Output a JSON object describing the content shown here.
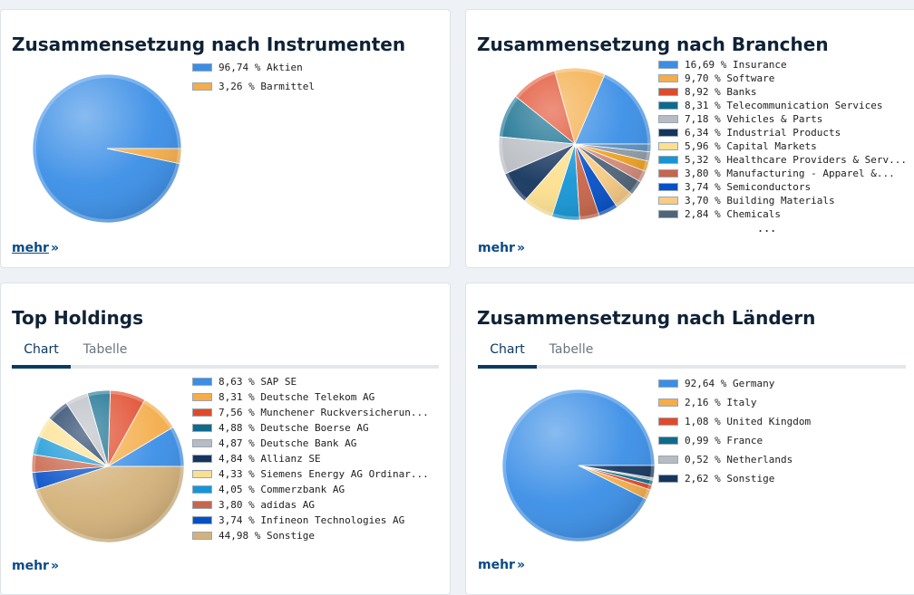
{
  "cards": {
    "instrumente": {
      "title": "Zusammensetzung nach Instrumenten",
      "more": "mehr",
      "chevron": "»",
      "chart_data": {
        "type": "pie",
        "slices": [
          {
            "label": "96,74 % Aktien",
            "value": 96.74,
            "color": "#3a8ee6"
          },
          {
            "label": "3,26 % Barmittel",
            "value": 3.26,
            "color": "#f4ad4a"
          }
        ]
      }
    },
    "branchen": {
      "title": "Zusammensetzung nach Branchen",
      "more": "mehr",
      "chevron": "»",
      "more_indicator": "...",
      "chart_data": {
        "type": "pie",
        "slices": [
          {
            "label": "16,69 % Insurance",
            "value": 16.69,
            "color": "#3a8ee6"
          },
          {
            "label": "9,70 % Software",
            "value": 9.7,
            "color": "#f4ad4a"
          },
          {
            "label": "8,92 % Banks",
            "value": 8.92,
            "color": "#e04a2a"
          },
          {
            "label": "8,31 % Telecommunication Services",
            "value": 8.31,
            "color": "#0f6b8c"
          },
          {
            "label": "7,18 % Vehicles & Parts",
            "value": 7.18,
            "color": "#b8bcc2"
          },
          {
            "label": "6,34 % Industrial Products",
            "value": 6.34,
            "color": "#16355e"
          },
          {
            "label": "5,96 % Capital Markets",
            "value": 5.96,
            "color": "#fde08f"
          },
          {
            "label": "5,32 % Healthcare Providers & Serv...",
            "value": 5.32,
            "color": "#1596d6"
          },
          {
            "label": "3,80 % Manufacturing - Apparel &...",
            "value": 3.8,
            "color": "#c8654a"
          },
          {
            "label": "3,74 % Semiconductors",
            "value": 3.74,
            "color": "#0550c8"
          },
          {
            "label": "3,70 % Building Materials",
            "value": 3.7,
            "color": "#f8cc85"
          },
          {
            "label": "2,84 % Chemicals",
            "value": 2.84,
            "color": "#4f6478"
          }
        ],
        "rest_slices": [
          {
            "value": 2.2,
            "color": "#d18a7a"
          },
          {
            "value": 2.0,
            "color": "#f0a220"
          },
          {
            "value": 1.8,
            "color": "#8f9aa6"
          },
          {
            "value": 1.5,
            "color": "#5b8fbf"
          }
        ]
      }
    },
    "holdings": {
      "title": "Top Holdings",
      "tabs": [
        "Chart",
        "Tabelle"
      ],
      "more": "mehr",
      "chevron": "»",
      "chart_data": {
        "type": "pie",
        "slices": [
          {
            "label": "8,63 % SAP SE",
            "value": 8.63,
            "color": "#3a8ee6"
          },
          {
            "label": "8,31 % Deutsche Telekom AG",
            "value": 8.31,
            "color": "#f4ad4a"
          },
          {
            "label": "7,56 % Munchener Ruckversicherun...",
            "value": 7.56,
            "color": "#e04a2a"
          },
          {
            "label": "4,88 % Deutsche Boerse AG",
            "value": 4.88,
            "color": "#0f6b8c"
          },
          {
            "label": "4,87 % Deutsche Bank AG",
            "value": 4.87,
            "color": "#b8bcc2"
          },
          {
            "label": "4,84 % Allianz SE",
            "value": 4.84,
            "color": "#16355e"
          },
          {
            "label": "4,33 % Siemens Energy AG Ordinar...",
            "value": 4.33,
            "color": "#fde08f"
          },
          {
            "label": "4,05 % Commerzbank AG",
            "value": 4.05,
            "color": "#1596d6"
          },
          {
            "label": "3,80 % adidas AG",
            "value": 3.8,
            "color": "#c8654a"
          },
          {
            "label": "3,74 % Infineon Technologies AG",
            "value": 3.74,
            "color": "#0550c8"
          },
          {
            "label": "44,98 % Sonstige",
            "value": 44.98,
            "color": "#d4b27a"
          }
        ]
      }
    },
    "laender": {
      "title": "Zusammensetzung nach Ländern",
      "tabs": [
        "Chart",
        "Tabelle"
      ],
      "more": "mehr",
      "chevron": "»",
      "chart_data": {
        "type": "pie",
        "slices": [
          {
            "label": "92,64 % Germany",
            "value": 92.64,
            "color": "#3a8ee6"
          },
          {
            "label": "2,16 % Italy",
            "value": 2.16,
            "color": "#f4ad4a"
          },
          {
            "label": "1,08 % United Kingdom",
            "value": 1.08,
            "color": "#e04a2a"
          },
          {
            "label": "0,99 % France",
            "value": 0.99,
            "color": "#0f6b8c"
          },
          {
            "label": "0,52 % Netherlands",
            "value": 0.52,
            "color": "#b8bcc2"
          },
          {
            "label": "2,62 % Sonstige",
            "value": 2.62,
            "color": "#16355e"
          }
        ]
      }
    }
  }
}
